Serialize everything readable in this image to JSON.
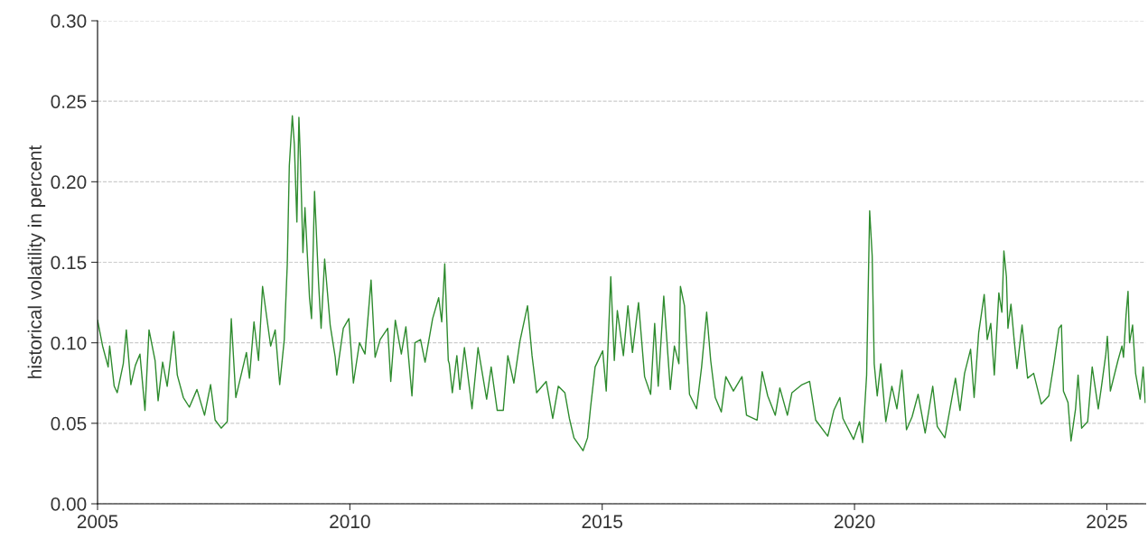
{
  "chart_data": {
    "type": "line",
    "ylabel": "historical volatility in percent",
    "xlim": [
      2005,
      2025.77
    ],
    "xticks": [
      2005,
      2010,
      2015,
      2020,
      2025
    ],
    "ylim": [
      0,
      0.3
    ],
    "yticks": [
      {
        "value": 0,
        "label": "0.00"
      },
      {
        "value": 0.05,
        "label": "0.05"
      },
      {
        "value": 0.1,
        "label": "0.10"
      },
      {
        "value": 0.15,
        "label": "0.15"
      },
      {
        "value": 0.2,
        "label": "0.20"
      },
      {
        "value": 0.25,
        "label": "0.25"
      },
      {
        "value": 0.3,
        "label": "0.30"
      }
    ],
    "grid": "y",
    "marker": "none",
    "line_style": "solid",
    "x": [
      2005.0,
      2005.1,
      2005.21,
      2005.24,
      2005.33,
      2005.39,
      2005.51,
      2005.57,
      2005.66,
      2005.75,
      2005.84,
      2005.94,
      2006.02,
      2006.14,
      2006.2,
      2006.29,
      2006.38,
      2006.51,
      2006.58,
      2006.7,
      2006.82,
      2006.97,
      2007.12,
      2007.24,
      2007.33,
      2007.45,
      2007.57,
      2007.65,
      2007.74,
      2007.83,
      2007.95,
      2008.01,
      2008.1,
      2008.19,
      2008.27,
      2008.43,
      2008.52,
      2008.61,
      2008.7,
      2008.76,
      2008.8,
      2008.86,
      2008.9,
      2008.95,
      2008.99,
      2009.02,
      2009.07,
      2009.11,
      2009.2,
      2009.24,
      2009.3,
      2009.38,
      2009.43,
      2009.5,
      2009.61,
      2009.71,
      2009.74,
      2009.87,
      2009.98,
      2010.07,
      2010.19,
      2010.3,
      2010.42,
      2010.5,
      2010.6,
      2010.75,
      2010.81,
      2010.9,
      2011.02,
      2011.11,
      2011.23,
      2011.29,
      2011.4,
      2011.49,
      2011.64,
      2011.76,
      2011.82,
      2011.88,
      2011.95,
      2011.97,
      2012.03,
      2012.12,
      2012.18,
      2012.27,
      2012.42,
      2012.54,
      2012.71,
      2012.8,
      2012.92,
      2013.04,
      2013.13,
      2013.25,
      2013.37,
      2013.52,
      2013.61,
      2013.7,
      2013.89,
      2014.02,
      2014.13,
      2014.26,
      2014.35,
      2014.44,
      2014.62,
      2014.71,
      2014.77,
      2014.86,
      2015.01,
      2015.08,
      2015.17,
      2015.24,
      2015.3,
      2015.42,
      2015.51,
      2015.6,
      2015.72,
      2015.84,
      2015.96,
      2016.04,
      2016.11,
      2016.22,
      2016.35,
      2016.43,
      2016.52,
      2016.55,
      2016.63,
      2016.73,
      2016.87,
      2016.97,
      2017.07,
      2017.15,
      2017.24,
      2017.36,
      2017.45,
      2017.6,
      2017.77,
      2017.86,
      2018.07,
      2018.17,
      2018.28,
      2018.43,
      2018.52,
      2018.67,
      2018.76,
      2018.96,
      2019.11,
      2019.23,
      2019.47,
      2019.59,
      2019.71,
      2019.77,
      2019.98,
      2020.1,
      2020.16,
      2020.24,
      2020.3,
      2020.35,
      2020.39,
      2020.45,
      2020.52,
      2020.62,
      2020.74,
      2020.84,
      2020.94,
      2021.03,
      2021.14,
      2021.26,
      2021.4,
      2021.55,
      2021.64,
      2021.79,
      2022.0,
      2022.09,
      2022.18,
      2022.3,
      2022.37,
      2022.46,
      2022.57,
      2022.63,
      2022.7,
      2022.77,
      2022.86,
      2022.92,
      2022.96,
      2023.01,
      2023.04,
      2023.1,
      2023.16,
      2023.22,
      2023.32,
      2023.43,
      2023.55,
      2023.7,
      2023.85,
      2023.96,
      2024.05,
      2024.1,
      2024.14,
      2024.23,
      2024.29,
      2024.38,
      2024.43,
      2024.5,
      2024.62,
      2024.71,
      2024.83,
      2024.89,
      2024.98,
      2025.01,
      2025.07,
      2025.22,
      2025.3,
      2025.33,
      2025.38,
      2025.42,
      2025.45,
      2025.51,
      2025.57,
      2025.66,
      2025.72,
      2025.76
    ],
    "series": [
      {
        "color": "#2e8b2e",
        "values": [
          0.114,
          0.098,
          0.085,
          0.098,
          0.073,
          0.069,
          0.087,
          0.108,
          0.074,
          0.086,
          0.093,
          0.058,
          0.108,
          0.089,
          0.064,
          0.088,
          0.073,
          0.107,
          0.08,
          0.066,
          0.06,
          0.071,
          0.055,
          0.074,
          0.052,
          0.047,
          0.051,
          0.115,
          0.066,
          0.078,
          0.094,
          0.078,
          0.113,
          0.089,
          0.135,
          0.098,
          0.108,
          0.074,
          0.102,
          0.149,
          0.21,
          0.241,
          0.223,
          0.175,
          0.24,
          0.214,
          0.156,
          0.184,
          0.128,
          0.115,
          0.194,
          0.137,
          0.109,
          0.152,
          0.111,
          0.091,
          0.08,
          0.109,
          0.115,
          0.075,
          0.1,
          0.093,
          0.139,
          0.091,
          0.102,
          0.109,
          0.076,
          0.114,
          0.093,
          0.11,
          0.067,
          0.1,
          0.102,
          0.088,
          0.115,
          0.128,
          0.113,
          0.149,
          0.089,
          0.087,
          0.069,
          0.092,
          0.071,
          0.097,
          0.059,
          0.097,
          0.065,
          0.085,
          0.058,
          0.058,
          0.092,
          0.075,
          0.101,
          0.123,
          0.092,
          0.069,
          0.076,
          0.053,
          0.073,
          0.069,
          0.053,
          0.041,
          0.033,
          0.041,
          0.06,
          0.085,
          0.095,
          0.07,
          0.141,
          0.089,
          0.12,
          0.092,
          0.123,
          0.094,
          0.125,
          0.079,
          0.068,
          0.112,
          0.073,
          0.129,
          0.071,
          0.098,
          0.087,
          0.135,
          0.123,
          0.068,
          0.059,
          0.085,
          0.119,
          0.089,
          0.066,
          0.057,
          0.079,
          0.07,
          0.079,
          0.055,
          0.052,
          0.082,
          0.067,
          0.055,
          0.072,
          0.055,
          0.069,
          0.074,
          0.076,
          0.052,
          0.042,
          0.058,
          0.066,
          0.053,
          0.04,
          0.051,
          0.038,
          0.08,
          0.182,
          0.154,
          0.087,
          0.067,
          0.087,
          0.051,
          0.073,
          0.059,
          0.083,
          0.046,
          0.054,
          0.068,
          0.044,
          0.073,
          0.048,
          0.041,
          0.078,
          0.058,
          0.081,
          0.096,
          0.066,
          0.106,
          0.13,
          0.102,
          0.112,
          0.08,
          0.131,
          0.119,
          0.157,
          0.141,
          0.109,
          0.124,
          0.103,
          0.084,
          0.111,
          0.078,
          0.081,
          0.062,
          0.067,
          0.089,
          0.109,
          0.111,
          0.07,
          0.063,
          0.039,
          0.059,
          0.08,
          0.047,
          0.051,
          0.085,
          0.059,
          0.072,
          0.093,
          0.104,
          0.07,
          0.089,
          0.098,
          0.091,
          0.117,
          0.132,
          0.1,
          0.111,
          0.081,
          0.065,
          0.085,
          0.063
        ]
      }
    ]
  }
}
